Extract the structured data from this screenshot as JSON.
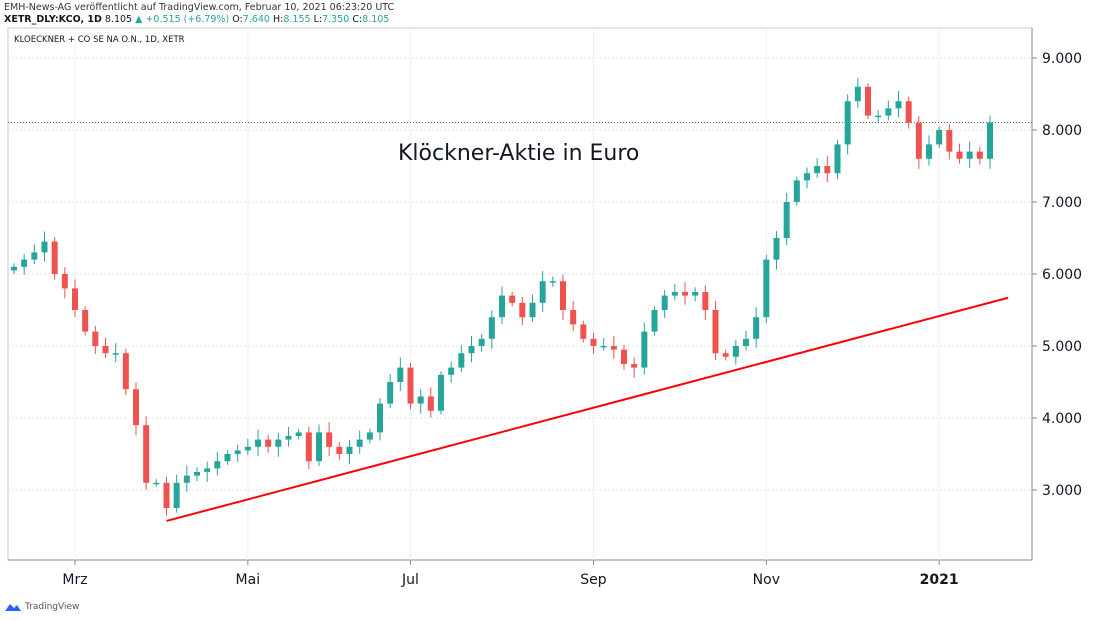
{
  "header": {
    "published": "EMH-News-AG veröffentlicht auf TradingView.com, Februar 10, 2021 06:23:20 UTC",
    "symbol": "XETR_DLY:KCO, 1D",
    "last": "8.105",
    "change": "+0.515 (+6.79%)",
    "o_label": "O:",
    "o": "7.640",
    "h_label": "H:",
    "h": "8.155",
    "l_label": "L:",
    "l": "7.350",
    "c_label": "C:",
    "c": "8.105"
  },
  "logo": "TradingView",
  "colors": {
    "up": "#26a69a",
    "down": "#ef5350",
    "trend": "#ff0000"
  },
  "chart_data": {
    "type": "candlestick",
    "title": "KLOECKNER + CO SE NA O.N., 1D, XETR",
    "annotation": "Klöckner-Aktie in Euro",
    "ylim": [
      2.0,
      9.4
    ],
    "yticks": [
      "9.000",
      "8.000",
      "7.000",
      "6.000",
      "5.000",
      "4.000",
      "3.000"
    ],
    "ytick_values": [
      9,
      8,
      7,
      6,
      5,
      4,
      3
    ],
    "xticks": [
      "Mrz",
      "Mai",
      "Jul",
      "Sep",
      "Nov",
      "2021"
    ],
    "xtick_index": [
      6,
      23,
      39,
      57,
      74,
      91
    ],
    "closes": [
      6.1,
      6.2,
      6.3,
      6.45,
      6.0,
      5.8,
      5.5,
      5.2,
      5.0,
      4.9,
      4.9,
      4.4,
      3.9,
      3.1,
      3.1,
      2.75,
      3.1,
      3.2,
      3.25,
      3.3,
      3.4,
      3.5,
      3.55,
      3.6,
      3.7,
      3.6,
      3.7,
      3.75,
      3.8,
      3.4,
      3.8,
      3.6,
      3.5,
      3.6,
      3.7,
      3.8,
      4.2,
      4.5,
      4.7,
      4.2,
      4.3,
      4.1,
      4.6,
      4.7,
      4.9,
      5.0,
      5.1,
      5.4,
      5.7,
      5.6,
      5.4,
      5.6,
      5.9,
      5.9,
      5.5,
      5.3,
      5.1,
      5.0,
      5.0,
      4.95,
      4.75,
      4.7,
      5.2,
      5.5,
      5.7,
      5.75,
      5.7,
      5.75,
      5.5,
      4.9,
      4.85,
      5.0,
      5.1,
      5.4,
      6.2,
      6.5,
      7.0,
      7.3,
      7.4,
      7.5,
      7.4,
      7.8,
      8.4,
      8.6,
      8.2,
      8.2,
      8.3,
      8.4,
      8.1,
      7.6,
      7.8,
      8.0,
      7.7,
      7.6,
      7.7,
      7.6,
      8.105
    ],
    "last_price": 8.105,
    "trendline": {
      "from": {
        "index": 15,
        "price": 2.57
      },
      "to": {
        "index": 97,
        "price": 5.67
      }
    }
  }
}
